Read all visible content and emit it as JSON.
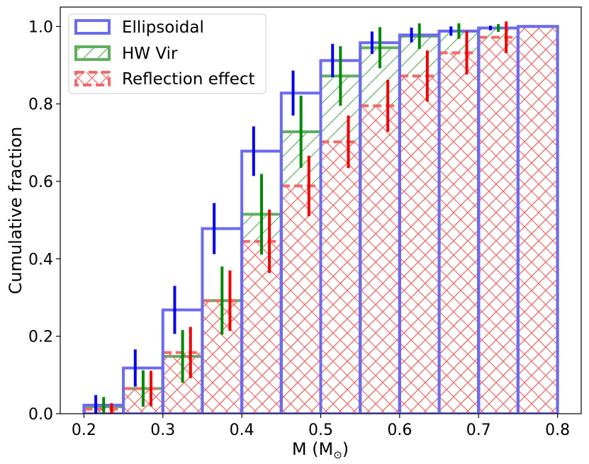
{
  "chart_data": {
    "type": "bar",
    "subtype": "cumulative step histogram with error bars",
    "xlabel": "M (M",
    "xlabel_sub": "⊙",
    "xlabel_close": ")",
    "ylabel": "Cumulative fraction",
    "xlim": [
      0.17,
      0.83
    ],
    "ylim": [
      0.0,
      1.05
    ],
    "xticks": [
      "0.2",
      "0.3",
      "0.4",
      "0.5",
      "0.6",
      "0.7",
      "0.8"
    ],
    "xtick_values": [
      0.2,
      0.3,
      0.4,
      0.5,
      0.6,
      0.7,
      0.8
    ],
    "yticks": [
      "0.0",
      "0.2",
      "0.4",
      "0.6",
      "0.8",
      "1.0"
    ],
    "ytick_values": [
      0.0,
      0.2,
      0.4,
      0.6,
      0.8,
      1.0
    ],
    "bin_edges": [
      0.2,
      0.25,
      0.3,
      0.35,
      0.4,
      0.45,
      0.5,
      0.55,
      0.6,
      0.65,
      0.7,
      0.75,
      0.8
    ],
    "legend_position": "upper-left",
    "series": [
      {
        "name": "Ellipsoidal",
        "color": "#6b6bf0",
        "errcolor": "#0000ee",
        "style": "solid",
        "values": [
          0.022,
          0.118,
          0.268,
          0.478,
          0.678,
          0.828,
          0.912,
          0.958,
          0.978,
          0.988,
          0.996,
          1.0
        ],
        "err_low": [
          0.022,
          0.048,
          0.062,
          0.066,
          0.064,
          0.058,
          0.043,
          0.029,
          0.019,
          0.012,
          0.006,
          0.0
        ],
        "err_high": [
          0.026,
          0.048,
          0.062,
          0.066,
          0.064,
          0.058,
          0.043,
          0.029,
          0.019,
          0.012,
          0.006,
          0.0
        ],
        "err_offset": 0.015
      },
      {
        "name": "HW Vir",
        "color": "#5fae5f",
        "errcolor": "#008800",
        "style": "solid",
        "values": [
          0.018,
          0.065,
          0.148,
          0.292,
          0.515,
          0.728,
          0.872,
          0.945,
          0.975,
          0.988,
          0.996,
          1.0
        ],
        "err_low": [
          0.022,
          0.047,
          0.068,
          0.088,
          0.104,
          0.093,
          0.077,
          0.053,
          0.033,
          0.02,
          0.01,
          0.0
        ],
        "err_high": [
          0.025,
          0.047,
          0.068,
          0.088,
          0.104,
          0.093,
          0.077,
          0.053,
          0.033,
          0.02,
          0.01,
          0.0
        ],
        "err_offset": 0.025
      },
      {
        "name": "Reflection effect",
        "color": "#f06a6a",
        "errcolor": "#ee0000",
        "style": "dashed",
        "values": [
          0.012,
          0.065,
          0.158,
          0.292,
          0.445,
          0.588,
          0.702,
          0.795,
          0.872,
          0.932,
          0.972,
          1.0
        ],
        "err_low": [
          0.012,
          0.046,
          0.066,
          0.078,
          0.082,
          0.078,
          0.068,
          0.067,
          0.066,
          0.056,
          0.041,
          0.0
        ],
        "err_high": [
          0.015,
          0.046,
          0.066,
          0.078,
          0.082,
          0.078,
          0.068,
          0.067,
          0.066,
          0.056,
          0.041,
          0.0
        ],
        "err_offset": 0.035
      }
    ]
  }
}
